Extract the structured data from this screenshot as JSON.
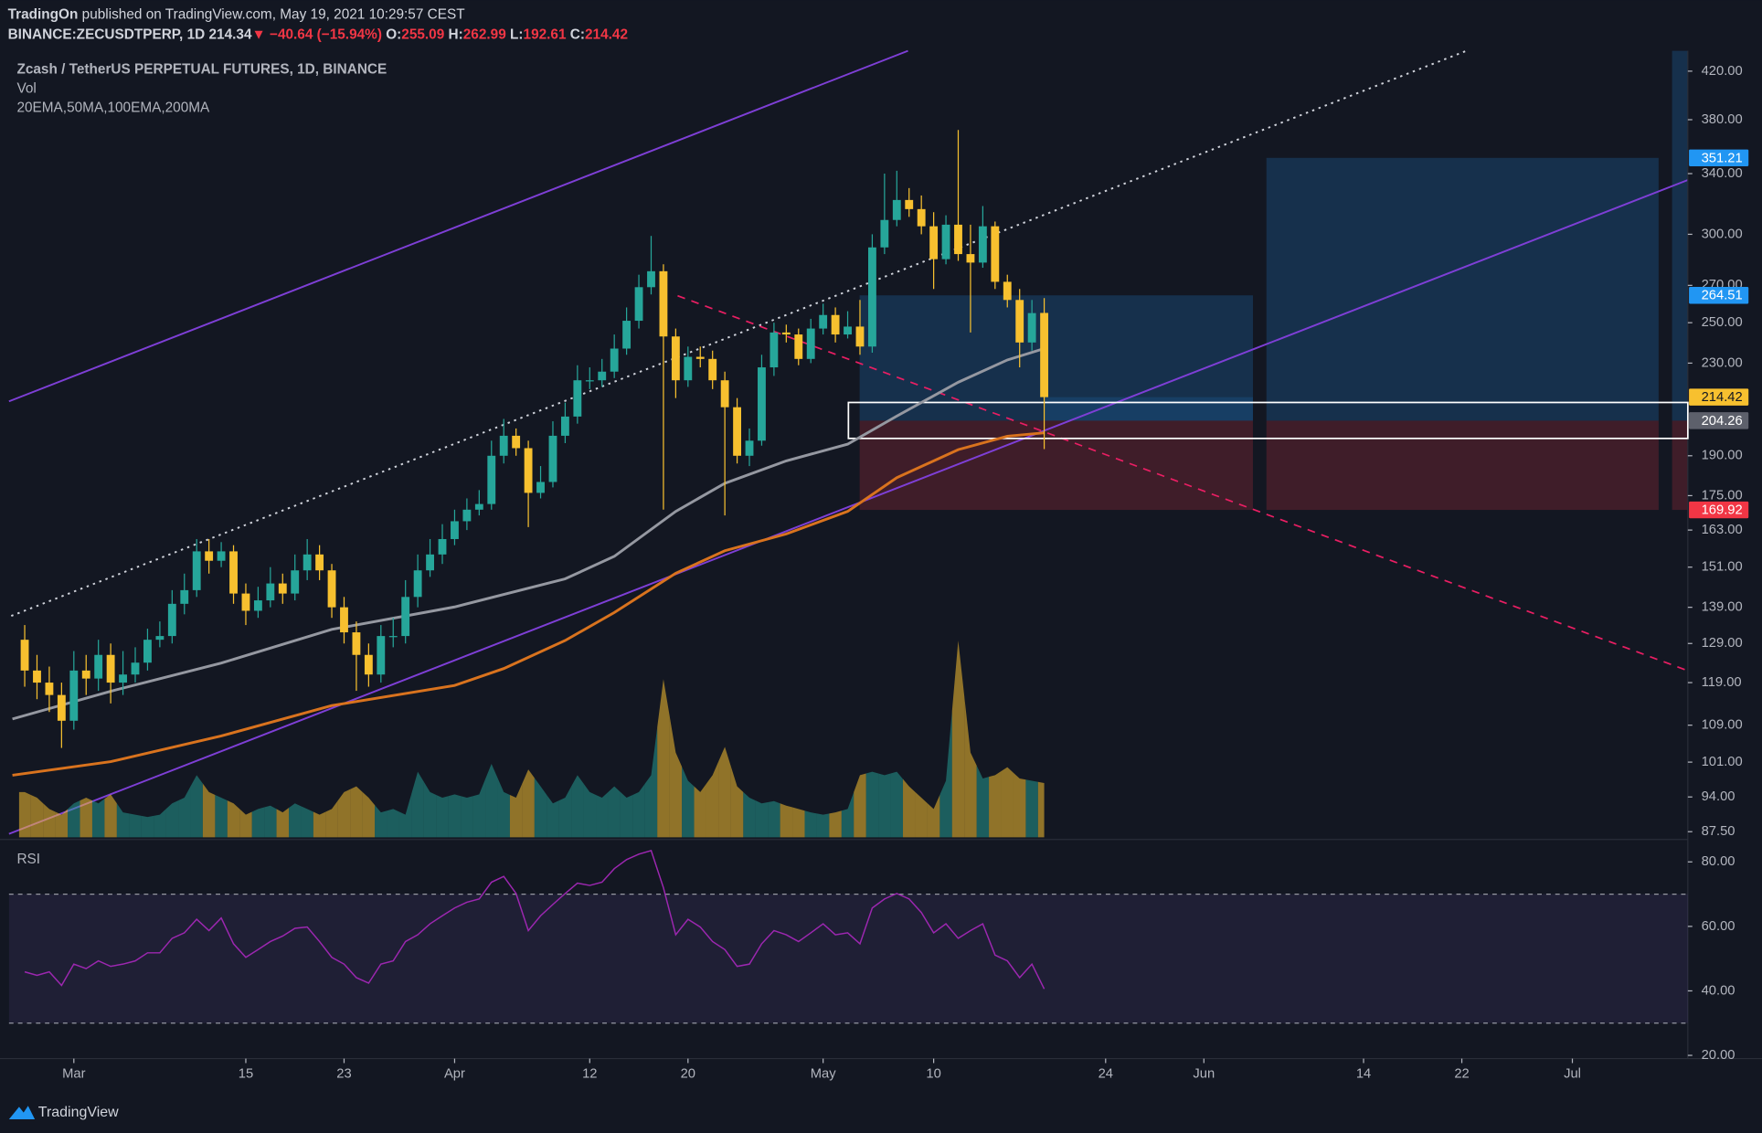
{
  "header": {
    "author": "TradingOn",
    "published": " published on TradingView.com, May 19, 2021 10:29:57 CEST",
    "symbol": "BINANCE:ZECUSDTPERP, 1D",
    "last": "214.34",
    "change": "▼ −40.64 (−15.94%)",
    "ohlc": [
      {
        "key": "O:",
        "val": "255.09"
      },
      {
        "key": "H:",
        "val": "262.99"
      },
      {
        "key": "L:",
        "val": "192.61"
      },
      {
        "key": "C:",
        "val": "214.42"
      }
    ]
  },
  "footer": "TradingView",
  "chart_data": {
    "type": "candlestick",
    "title": "Zcash / TetherUS PERPETUAL FUTURES, 1D, BINANCE",
    "indicators": "20EMA,50MA,100EMA,200MA",
    "up_color": "#26a69a",
    "down_color": "#f7c02f",
    "log_scale": true,
    "open": [
      130,
      122,
      119,
      116,
      110,
      122,
      120,
      126,
      119,
      121,
      124,
      130,
      131,
      140,
      144,
      156,
      153,
      156,
      143,
      138,
      141,
      146,
      143,
      150,
      155,
      150,
      139,
      132,
      126,
      121,
      131,
      131,
      142,
      150,
      155,
      160,
      166,
      170,
      172,
      190,
      198,
      193,
      176,
      180,
      198,
      206,
      222,
      222,
      226,
      237,
      251,
      269,
      278,
      243,
      222,
      233,
      232,
      222,
      210,
      190,
      196,
      228,
      245,
      244,
      232,
      247,
      254,
      244,
      248,
      238,
      292,
      309,
      322,
      316,
      305,
      285,
      306,
      288,
      283,
      305,
      272,
      262,
      240,
      255.09
    ],
    "high": [
      134,
      126,
      123,
      119,
      127,
      126,
      130,
      129,
      127,
      128,
      133,
      135,
      144,
      149,
      160,
      160,
      159,
      158,
      146,
      145,
      151,
      149,
      155,
      160,
      158,
      152,
      142,
      135,
      129,
      134,
      136,
      147,
      155,
      160,
      165,
      170,
      174,
      177,
      196,
      205,
      201,
      196,
      186,
      204,
      212,
      229,
      228,
      232,
      244,
      258,
      276,
      299,
      282,
      247,
      238,
      238,
      236,
      226,
      214,
      201,
      234,
      250,
      249,
      247,
      252,
      260,
      258,
      256,
      262,
      300,
      340,
      342,
      330,
      325,
      314,
      312,
      372,
      306,
      318,
      308,
      276,
      268,
      262,
      262.99
    ],
    "low": [
      118,
      115,
      112,
      104,
      108,
      116,
      117,
      114,
      116,
      119,
      122,
      128,
      129,
      137,
      142,
      149,
      151,
      140,
      134,
      136,
      139,
      140,
      141,
      147,
      147,
      136,
      129,
      117,
      118,
      119,
      128,
      129,
      139,
      148,
      152,
      158,
      163,
      168,
      170,
      187,
      190,
      164,
      174,
      178,
      195,
      203,
      218,
      219,
      223,
      234,
      247,
      265,
      170,
      214,
      219,
      228,
      218,
      168,
      187,
      186,
      194,
      224,
      240,
      229,
      230,
      244,
      240,
      242,
      234,
      235,
      288,
      305,
      311,
      300,
      268,
      282,
      284,
      245,
      280,
      268,
      258,
      228,
      236,
      192.61
    ],
    "close": [
      122,
      119,
      116,
      110,
      122,
      120,
      126,
      119,
      121,
      124,
      130,
      131,
      140,
      144,
      156,
      153,
      156,
      143,
      138,
      141,
      146,
      143,
      150,
      155,
      150,
      139,
      132,
      126,
      121,
      131,
      131,
      142,
      150,
      155,
      160,
      166,
      170,
      172,
      190,
      198,
      193,
      176,
      180,
      198,
      206,
      222,
      222,
      226,
      237,
      251,
      269,
      278,
      243,
      222,
      233,
      232,
      222,
      210,
      190,
      196,
      228,
      245,
      244,
      232,
      247,
      254,
      244,
      248,
      238,
      292,
      309,
      322,
      316,
      305,
      285,
      306,
      288,
      283,
      305,
      272,
      262,
      240,
      255,
      214.42
    ],
    "volume": {
      "name": "Vol",
      "values": [
        40,
        35,
        25,
        20,
        30,
        35,
        30,
        38,
        22,
        20,
        18,
        20,
        30,
        35,
        55,
        40,
        35,
        30,
        20,
        25,
        28,
        22,
        30,
        25,
        20,
        25,
        40,
        45,
        35,
        22,
        25,
        20,
        58,
        40,
        35,
        38,
        35,
        38,
        65,
        40,
        35,
        60,
        45,
        30,
        35,
        55,
        40,
        35,
        45,
        35,
        40,
        55,
        140,
        75,
        50,
        40,
        55,
        80,
        45,
        35,
        30,
        32,
        28,
        25,
        22,
        20,
        22,
        25,
        55,
        58,
        55,
        58,
        45,
        35,
        25,
        50,
        174,
        75,
        52,
        55,
        62,
        52,
        50,
        48
      ]
    },
    "moving_averages": [
      {
        "color": "#9598a1",
        "x": [
          -1,
          7,
          16,
          25,
          35,
          44,
          48,
          53,
          57,
          62,
          67,
          71,
          76,
          80,
          83
        ],
        "values": [
          110.4,
          116.9,
          123.9,
          132.8,
          139.1,
          147.4,
          154.4,
          169.4,
          179.5,
          188.0,
          194.6,
          206.2,
          221.1,
          231.5,
          237.0
        ]
      },
      {
        "color": "#d9731e",
        "x": [
          -1,
          7,
          16,
          25,
          35,
          39,
          44,
          48,
          53,
          57,
          62,
          67,
          71,
          76,
          80,
          83
        ],
        "values": [
          98.3,
          101.1,
          106.6,
          113.5,
          118.3,
          122.5,
          129.8,
          137.5,
          149.1,
          156.2,
          161.7,
          169.4,
          181.6,
          192.4,
          197.8,
          199.2
        ]
      }
    ],
    "xlim": [
      -1.28,
      135.4
    ],
    "xticks": [
      {
        "value": 4,
        "label": "Mar"
      },
      {
        "value": 18,
        "label": "15"
      },
      {
        "value": 26,
        "label": "23"
      },
      {
        "value": 35,
        "label": "Apr"
      },
      {
        "value": 46,
        "label": "12"
      },
      {
        "value": 54,
        "label": "20"
      },
      {
        "value": 65,
        "label": "May"
      },
      {
        "value": 74,
        "label": "10"
      },
      {
        "value": 88,
        "label": "24"
      },
      {
        "value": 96,
        "label": "Jun"
      },
      {
        "value": 109,
        "label": "14"
      },
      {
        "value": 117,
        "label": "22"
      },
      {
        "value": 126,
        "label": "Jul"
      }
    ],
    "ylim": [
      86.5,
      438
    ],
    "yticks": [
      {
        "value": 420,
        "label": "420.00"
      },
      {
        "value": 380,
        "label": "380.00"
      },
      {
        "value": 340,
        "label": "340.00"
      },
      {
        "value": 300,
        "label": "300.00"
      },
      {
        "value": 270,
        "label": "270.00"
      },
      {
        "value": 250,
        "label": "250.00"
      },
      {
        "value": 230,
        "label": "230.00"
      },
      {
        "value": 190,
        "label": "190.00"
      },
      {
        "value": 175,
        "label": "175.00"
      },
      {
        "value": 163,
        "label": "163.00"
      },
      {
        "value": 151,
        "label": "151.00"
      },
      {
        "value": 139,
        "label": "139.00"
      },
      {
        "value": 129,
        "label": "129.00"
      },
      {
        "value": 119,
        "label": "119.00"
      },
      {
        "value": 109,
        "label": "109.00"
      },
      {
        "value": 101,
        "label": "101.00"
      },
      {
        "value": 94,
        "label": "94.00"
      },
      {
        "value": 87.5,
        "label": "87.50"
      }
    ],
    "price_labels": [
      {
        "value": 351.21,
        "label": "351.21",
        "color": "#2196f3"
      },
      {
        "value": 264.51,
        "label": "264.51",
        "color": "#2196f3"
      },
      {
        "value": 214.42,
        "label": "214.42",
        "color": "#f7c02f"
      },
      {
        "value": 204.26,
        "label": "204.26",
        "color": "#5d606b"
      },
      {
        "value": 169.92,
        "label": "169.92",
        "color": "#f23645"
      }
    ],
    "rsi": {
      "name": "RSI",
      "color": "#9c27b0",
      "ylim": [
        19,
        85.2
      ],
      "bands": [
        70,
        30
      ],
      "yticks": [
        {
          "value": 80,
          "label": "80.00"
        },
        {
          "value": 60,
          "label": "60.00"
        },
        {
          "value": 40,
          "label": "40.00"
        },
        {
          "value": 20,
          "label": "20.00"
        }
      ],
      "values": [
        45.9,
        44.8,
        45.9,
        41.7,
        48.3,
        46.9,
        49.3,
        47.6,
        48.3,
        49.3,
        51.8,
        51.8,
        56.3,
        58.0,
        62.2,
        58.7,
        62.6,
        54.6,
        50.4,
        52.8,
        55.3,
        57.0,
        59.4,
        59.8,
        55.3,
        50.4,
        48.3,
        44.1,
        42.4,
        48.3,
        49.3,
        55.3,
        57.4,
        60.8,
        63.3,
        65.7,
        67.5,
        68.5,
        73.7,
        75.5,
        70.2,
        58.7,
        63.3,
        66.8,
        70.2,
        73.4,
        72.7,
        73.7,
        77.9,
        80.7,
        82.4,
        83.5,
        72.0,
        57.4,
        62.2,
        59.8,
        55.3,
        52.8,
        47.6,
        48.3,
        54.6,
        58.7,
        57.4,
        55.3,
        58.0,
        60.8,
        57.4,
        58.0,
        54.6,
        65.7,
        68.5,
        70.2,
        68.5,
        64.3,
        58.0,
        60.8,
        56.3,
        58.7,
        60.8,
        51.1,
        49.3,
        44.1,
        48.3,
        40.6
      ]
    }
  }
}
